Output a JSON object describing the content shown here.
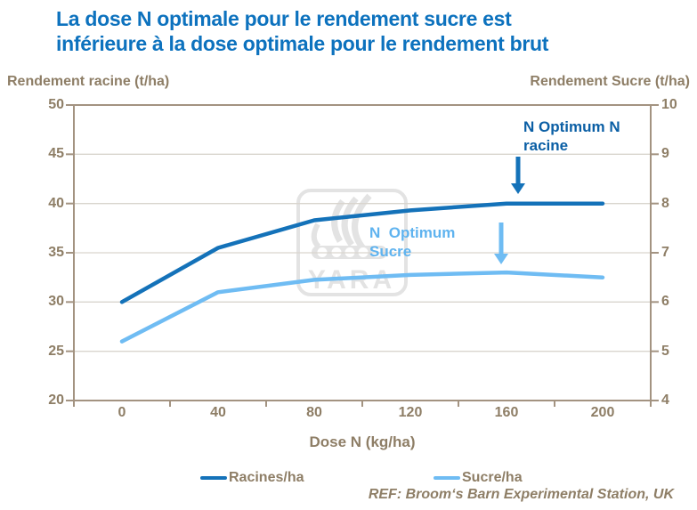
{
  "title": {
    "line1": "La dose N optimale pour le rendement sucre est",
    "line2": "inférieure à la dose optimale pour le rendement brut"
  },
  "colors": {
    "title_blue": "#0D72BE",
    "dark_line": "#1472B9",
    "light_line": "#6FBCF3",
    "annot_dark": "#0B5FA5",
    "annot_light": "#5FB3EF",
    "text_brown": "#8E7E66",
    "axis_line": "#A39381",
    "gridline": "#D9D5CE",
    "watermark_gray": "#E3E3E3"
  },
  "chart_data": {
    "type": "line",
    "categories": [
      0,
      40,
      80,
      120,
      160,
      200
    ],
    "xlabel": "Dose N (kg/ha)",
    "series": [
      {
        "name": "Racines/ha",
        "axis": "left",
        "color": "#1472B9",
        "values": [
          30,
          35.5,
          38.3,
          39.3,
          40,
          40
        ]
      },
      {
        "name": "Sucre/ha",
        "axis": "right",
        "color": "#6FBCF3",
        "values": [
          5.2,
          6.2,
          6.45,
          6.55,
          6.6,
          6.5
        ]
      }
    ],
    "left_axis": {
      "label": "Rendement racine (t/ha)",
      "min": 20,
      "max": 50,
      "ticks": [
        20,
        25,
        30,
        35,
        40,
        45,
        50
      ]
    },
    "right_axis": {
      "label": "Rendement Sucre (t/ha)",
      "min": 4,
      "max": 10,
      "ticks": [
        4,
        5,
        6,
        7,
        8,
        9,
        10
      ]
    },
    "grid": true,
    "legend_position": "bottom"
  },
  "annotations": {
    "racine": {
      "text": "N Optimum N\nracine",
      "color": "#0B5FA5",
      "arrow_color": "#1472B9"
    },
    "sucre": {
      "text": "N  Optimum\nSucre",
      "color": "#5FB3EF",
      "arrow_color": "#6FBCF3"
    }
  },
  "legend": {
    "items": [
      {
        "label": "Racines/ha",
        "color": "#1472B9"
      },
      {
        "label": "Sucre/ha",
        "color": "#6FBCF3"
      }
    ]
  },
  "ref": "REF: Broom‘s Barn Experimental Station, UK",
  "watermark": {
    "text": "YARA"
  }
}
